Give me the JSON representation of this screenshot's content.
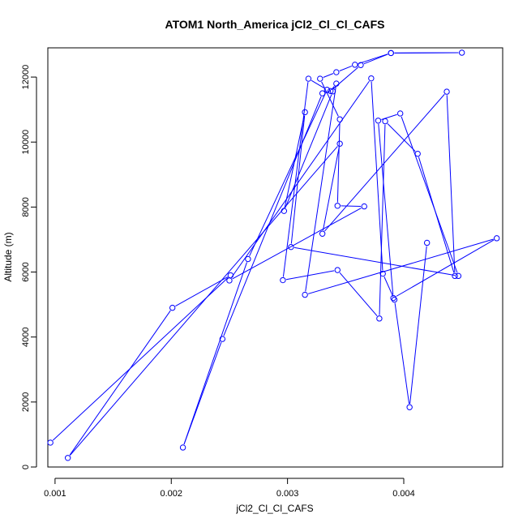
{
  "chart_data": {
    "type": "line",
    "title": "ATOM1 North_America jCl2_Cl_Cl_CAFS",
    "xlabel": "jCl2_Cl_Cl_CAFS",
    "ylabel": "Altitude (m)",
    "xlim": [
      0.000938,
      0.004851
    ],
    "ylim": [
      0,
      12900
    ],
    "x_ticks": [
      0.001,
      0.002,
      0.003,
      0.004
    ],
    "x_tick_labels": [
      "0.001",
      "0.002",
      "0.003",
      "0.004"
    ],
    "y_ticks": [
      0,
      2000,
      4000,
      6000,
      8000,
      10000,
      12000
    ],
    "y_tick_labels": [
      "0",
      "2000",
      "4000",
      "6000",
      "8000",
      "10000",
      "12000"
    ],
    "grid": false,
    "color": "#0000ff",
    "series": [
      {
        "markers": "open-circle",
        "x": [
          0.00096,
          0.00251,
          0.00201,
          0.00111,
          0.00345,
          0.0033,
          0.00437,
          0.00444,
          0.00412,
          0.00384,
          0.00379,
          0.00343,
          0.00296,
          0.00318,
          0.00334,
          0.00266,
          0.0021,
          0.00244,
          0.0033,
          0.00339,
          0.00297,
          0.00315,
          0.00303,
          0.00447,
          0.00397,
          0.00378,
          0.00391,
          0.0048,
          0.00315,
          0.00342,
          0.00337,
          0.00363,
          0.00389,
          0.0045,
          0.00389,
          0.00358,
          0.00342,
          0.00328,
          0.00345,
          0.00343,
          0.00366,
          0.0025,
          0.00372,
          0.00382,
          0.00392,
          0.00405,
          0.0042
        ],
        "y": [
          750,
          5900,
          4900,
          280,
          9950,
          7180,
          11550,
          5880,
          9640,
          10640,
          4570,
          6060,
          5750,
          11950,
          11610,
          6400,
          600,
          3940,
          11500,
          11560,
          7880,
          10920,
          6770,
          5880,
          10880,
          10660,
          5200,
          7040,
          5300,
          11800,
          11570,
          12370,
          12740,
          12750,
          12740,
          12380,
          12150,
          11950,
          10700,
          8040,
          8020,
          5740,
          11960,
          5950,
          5150,
          1840,
          6900
        ]
      }
    ]
  }
}
